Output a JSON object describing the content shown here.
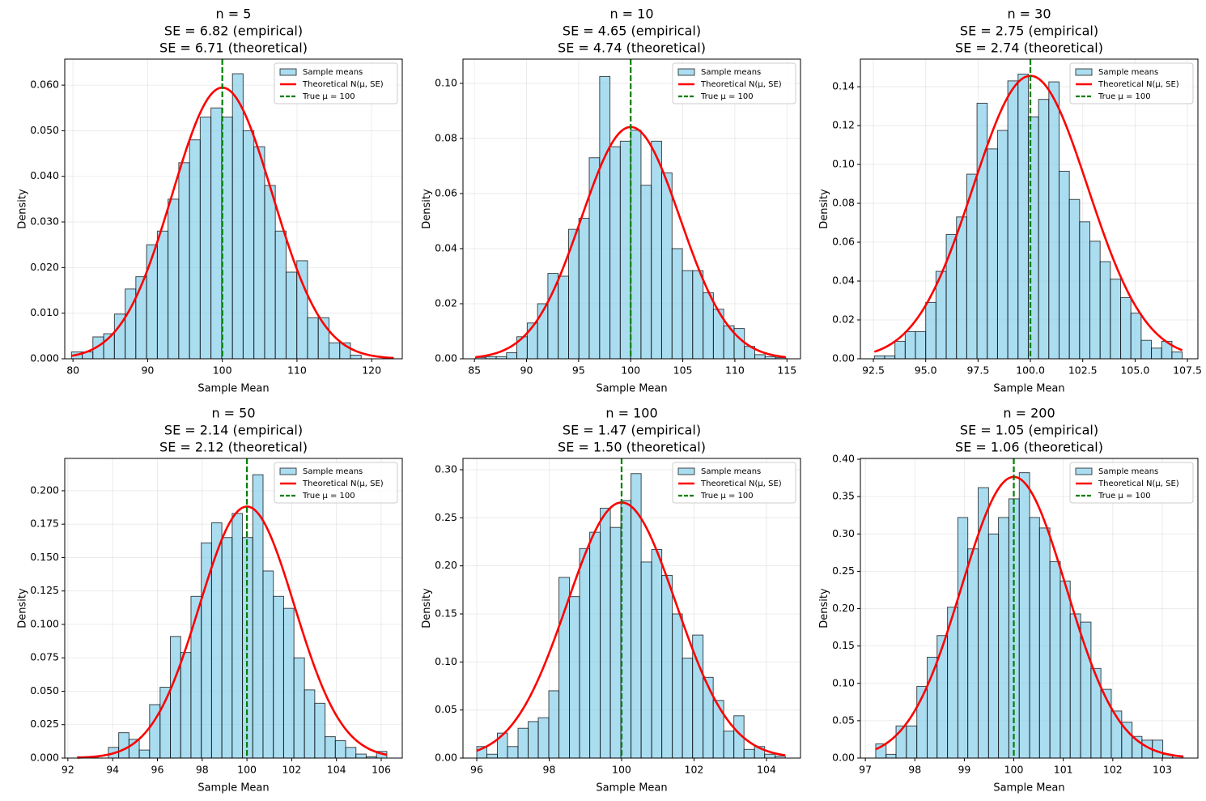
{
  "chart_data": [
    {
      "type": "histogram",
      "title": [
        "n = 5",
        "SE = 6.82 (empirical)",
        "SE = 6.71 (theoretical)"
      ],
      "xlabel": "Sample Mean",
      "ylabel": "Density",
      "name": "Sample means",
      "color": "#87ceeb",
      "edgecolor": "#000000",
      "bins": [
        79.8,
        81.24,
        82.67,
        84.11,
        85.55,
        86.99,
        88.42,
        89.86,
        91.3,
        92.73,
        94.17,
        95.61,
        97.04,
        98.48,
        99.92,
        101.36,
        102.79,
        104.23,
        105.67,
        107.1,
        108.54,
        109.98,
        111.41,
        112.85,
        114.29,
        115.73,
        117.16,
        118.6,
        120.04,
        121.47,
        122.91
      ],
      "values": [
        0.0015,
        0.0015,
        0.0048,
        0.0055,
        0.0098,
        0.0153,
        0.018,
        0.025,
        0.028,
        0.035,
        0.043,
        0.048,
        0.053,
        0.055,
        0.053,
        0.0625,
        0.05,
        0.0465,
        0.038,
        0.028,
        0.019,
        0.0215,
        0.009,
        0.009,
        0.0035,
        0.0035,
        0.0008,
        0,
        0,
        0.0003
      ],
      "curve": {
        "name": "Theoretical N(μ, SE)",
        "color": "#ff0000",
        "mean": 100,
        "sd": 6.71
      },
      "vline": {
        "name": "True μ = 100",
        "color": "#008000",
        "value": 100
      },
      "xlim": [
        78.9,
        124.1
      ],
      "xticks": [
        80,
        90,
        100,
        110,
        120
      ],
      "ylim": [
        0,
        0.0657
      ],
      "yticks": [
        {
          "value": 0,
          "label": "0.000"
        },
        {
          "value": 0.01,
          "label": "0.010"
        },
        {
          "value": 0.02,
          "label": "0.020"
        },
        {
          "value": 0.03,
          "label": "0.030"
        },
        {
          "value": 0.04,
          "label": "0.040"
        },
        {
          "value": 0.05,
          "label": "0.050"
        },
        {
          "value": 0.06,
          "label": "0.060"
        }
      ],
      "grid": true,
      "legend": "upper right"
    },
    {
      "type": "histogram",
      "title": [
        "n = 10",
        "SE = 4.65 (empirical)",
        "SE = 4.74 (theoretical)"
      ],
      "xlabel": "Sample Mean",
      "ylabel": "Density",
      "name": "Sample means",
      "color": "#87ceeb",
      "edgecolor": "#000000",
      "bins": [
        85.1,
        86.09,
        87.09,
        88.08,
        89.07,
        90.07,
        91.06,
        92.05,
        93.04,
        94.04,
        95.03,
        96.02,
        97.02,
        98.01,
        99.0,
        100.0,
        100.99,
        101.98,
        102.97,
        103.97,
        104.96,
        105.95,
        106.95,
        107.94,
        108.93,
        109.93,
        110.92,
        111.91,
        112.9,
        113.9,
        114.89
      ],
      "values": [
        0.0005,
        0.0008,
        0.0008,
        0.0022,
        0.008,
        0.013,
        0.02,
        0.031,
        0.03,
        0.047,
        0.051,
        0.073,
        0.1025,
        0.077,
        0.079,
        0.083,
        0.063,
        0.079,
        0.0675,
        0.04,
        0.032,
        0.032,
        0.024,
        0.018,
        0.012,
        0.011,
        0.0045,
        0.0015,
        0.0008,
        0.0004
      ],
      "curve": {
        "name": "Theoretical N(μ, SE)",
        "color": "#ff0000",
        "mean": 100,
        "sd": 4.74
      },
      "vline": {
        "name": "True μ = 100",
        "color": "#008000",
        "value": 100
      },
      "xlim": [
        83.9,
        116.3
      ],
      "xticks": [
        85,
        90,
        95,
        100,
        105,
        110,
        115
      ],
      "ylim": [
        0,
        0.1088
      ],
      "yticks": [
        {
          "value": 0,
          "label": "0.00"
        },
        {
          "value": 0.02,
          "label": "0.02"
        },
        {
          "value": 0.04,
          "label": "0.04"
        },
        {
          "value": 0.06,
          "label": "0.06"
        },
        {
          "value": 0.08,
          "label": "0.08"
        },
        {
          "value": 0.1,
          "label": "0.10"
        }
      ],
      "grid": true,
      "legend": "upper right"
    },
    {
      "type": "histogram",
      "title": [
        "n = 30",
        "SE = 2.75 (empirical)",
        "SE = 2.74 (theoretical)"
      ],
      "xlabel": "Sample Mean",
      "ylabel": "Density",
      "name": "Sample means",
      "color": "#87ceeb",
      "edgecolor": "#000000",
      "bins": [
        92.55,
        93.04,
        93.53,
        94.02,
        94.51,
        95.0,
        95.49,
        95.98,
        96.47,
        96.96,
        97.45,
        97.94,
        98.43,
        98.92,
        99.41,
        99.9,
        100.39,
        100.88,
        101.37,
        101.86,
        102.35,
        102.84,
        103.33,
        103.82,
        104.31,
        104.8,
        105.29,
        105.78,
        106.27,
        106.76,
        107.25
      ],
      "values": [
        0.0015,
        0.0015,
        0.009,
        0.014,
        0.014,
        0.029,
        0.045,
        0.064,
        0.073,
        0.095,
        0.1315,
        0.108,
        0.1175,
        0.143,
        0.1465,
        0.1245,
        0.1335,
        0.1425,
        0.0965,
        0.082,
        0.0705,
        0.0605,
        0.05,
        0.041,
        0.0315,
        0.0235,
        0.0095,
        0.0055,
        0.009,
        0.0035
      ],
      "curve": {
        "name": "Theoretical N(μ, SE)",
        "color": "#ff0000",
        "mean": 100,
        "sd": 2.74
      },
      "vline": {
        "name": "True μ = 100",
        "color": "#008000",
        "value": 100
      },
      "xlim": [
        91.88,
        108.0
      ],
      "xticks": [
        92.5,
        {
          "value": 95,
          "label": "95.0"
        },
        97.5,
        {
          "value": 100,
          "label": "100.0"
        },
        102.5,
        {
          "value": 105,
          "label": "105.0"
        },
        107.5
      ],
      "ylim": [
        0,
        0.1542
      ],
      "yticks": [
        {
          "value": 0,
          "label": "0.00"
        },
        {
          "value": 0.02,
          "label": "0.02"
        },
        {
          "value": 0.04,
          "label": "0.04"
        },
        {
          "value": 0.06,
          "label": "0.06"
        },
        {
          "value": 0.08,
          "label": "0.08"
        },
        {
          "value": 0.1,
          "label": "0.10"
        },
        {
          "value": 0.12,
          "label": "0.12"
        },
        {
          "value": 0.14,
          "label": "0.14"
        }
      ],
      "grid": true,
      "legend": "upper right"
    },
    {
      "type": "histogram",
      "title": [
        "n = 50",
        "SE = 2.14 (empirical)",
        "SE = 2.12 (theoretical)"
      ],
      "xlabel": "Sample Mean",
      "ylabel": "Density",
      "name": "Sample means",
      "color": "#87ceeb",
      "edgecolor": "#000000",
      "bins": [
        92.43,
        92.89,
        93.35,
        93.81,
        94.27,
        94.73,
        95.19,
        95.65,
        96.12,
        96.58,
        97.04,
        97.5,
        97.96,
        98.42,
        98.88,
        99.34,
        99.8,
        100.26,
        100.72,
        101.18,
        101.64,
        102.1,
        102.57,
        103.03,
        103.49,
        103.95,
        104.41,
        104.87,
        105.33,
        105.79,
        106.25
      ],
      "values": [
        0.001,
        0.001,
        0,
        0.008,
        0.019,
        0.014,
        0.006,
        0.04,
        0.053,
        0.091,
        0.079,
        0.121,
        0.161,
        0.176,
        0.165,
        0.183,
        0.165,
        0.212,
        0.14,
        0.121,
        0.112,
        0.075,
        0.051,
        0.041,
        0.016,
        0.013,
        0.008,
        0.003,
        0.001,
        0.005
      ],
      "curve": {
        "name": "Theoretical N(μ, SE)",
        "color": "#ff0000",
        "mean": 100,
        "sd": 2.12
      },
      "vline": {
        "name": "True μ = 100",
        "color": "#008000",
        "value": 100
      },
      "xlim": [
        91.86,
        106.94
      ],
      "xticks": [
        92,
        94,
        96,
        98,
        100,
        102,
        104,
        106
      ],
      "ylim": [
        0,
        0.2242
      ],
      "yticks": [
        {
          "value": 0,
          "label": "0.000"
        },
        {
          "value": 0.025,
          "label": "0.025"
        },
        {
          "value": 0.05,
          "label": "0.050"
        },
        {
          "value": 0.075,
          "label": "0.075"
        },
        {
          "value": 0.1,
          "label": "0.100"
        },
        {
          "value": 0.125,
          "label": "0.125"
        },
        {
          "value": 0.15,
          "label": "0.150"
        },
        {
          "value": 0.175,
          "label": "0.175"
        },
        {
          "value": 0.2,
          "label": "0.200"
        }
      ],
      "grid": true,
      "legend": "upper right"
    },
    {
      "type": "histogram",
      "title": [
        "n = 100",
        "SE = 1.47 (empirical)",
        "SE = 1.50 (theoretical)"
      ],
      "xlabel": "Sample Mean",
      "ylabel": "Density",
      "name": "Sample means",
      "color": "#87ceeb",
      "edgecolor": "#000000",
      "bins": [
        96.0,
        96.28,
        96.57,
        96.85,
        97.14,
        97.42,
        97.7,
        97.99,
        98.27,
        98.56,
        98.84,
        99.12,
        99.41,
        99.69,
        99.98,
        100.26,
        100.54,
        100.83,
        101.11,
        101.4,
        101.68,
        101.96,
        102.25,
        102.53,
        102.82,
        103.1,
        103.38,
        103.67,
        103.95,
        104.24,
        104.52
      ],
      "values": [
        0.012,
        0.004,
        0.026,
        0.012,
        0.031,
        0.038,
        0.042,
        0.07,
        0.188,
        0.168,
        0.218,
        0.235,
        0.26,
        0.24,
        0.268,
        0.296,
        0.204,
        0.217,
        0.19,
        0.15,
        0.104,
        0.128,
        0.084,
        0.06,
        0.028,
        0.044,
        0.009,
        0.012,
        0.004,
        0.002
      ],
      "curve": {
        "name": "Theoretical N(μ, SE)",
        "color": "#ff0000",
        "mean": 100,
        "sd": 1.5
      },
      "vline": {
        "name": "True μ = 100",
        "color": "#008000",
        "value": 100
      },
      "xlim": [
        95.62,
        104.94
      ],
      "xticks": [
        96,
        98,
        100,
        102,
        104
      ],
      "ylim": [
        0,
        0.3118
      ],
      "yticks": [
        {
          "value": 0,
          "label": "0.00"
        },
        {
          "value": 0.05,
          "label": "0.05"
        },
        {
          "value": 0.1,
          "label": "0.10"
        },
        {
          "value": 0.15,
          "label": "0.15"
        },
        {
          "value": 0.2,
          "label": "0.20"
        },
        {
          "value": 0.25,
          "label": "0.25"
        },
        {
          "value": 0.3,
          "label": "0.30"
        }
      ],
      "grid": true,
      "legend": "upper right"
    },
    {
      "type": "histogram",
      "title": [
        "n = 200",
        "SE = 1.05 (empirical)",
        "SE = 1.06 (theoretical)"
      ],
      "xlabel": "Sample Mean",
      "ylabel": "Density",
      "name": "Sample means",
      "color": "#87ceeb",
      "edgecolor": "#000000",
      "bins": [
        97.21,
        97.42,
        97.62,
        97.83,
        98.04,
        98.25,
        98.45,
        98.66,
        98.87,
        99.07,
        99.28,
        99.49,
        99.69,
        99.9,
        100.11,
        100.32,
        100.52,
        100.73,
        100.94,
        101.14,
        101.35,
        101.56,
        101.76,
        101.97,
        102.18,
        102.39,
        102.59,
        102.8,
        103.01,
        103.21,
        103.42
      ],
      "values": [
        0.019,
        0.005,
        0.043,
        0.043,
        0.096,
        0.135,
        0.164,
        0.202,
        0.322,
        0.28,
        0.362,
        0.3,
        0.322,
        0.347,
        0.382,
        0.322,
        0.308,
        0.263,
        0.237,
        0.193,
        0.182,
        0.12,
        0.092,
        0.063,
        0.048,
        0.029,
        0.024,
        0.024,
        0.005,
        0.003
      ],
      "curve": {
        "name": "Theoretical N(μ, SE)",
        "color": "#ff0000",
        "mean": 100,
        "sd": 1.06
      },
      "vline": {
        "name": "True μ = 100",
        "color": "#008000",
        "value": 100
      },
      "xlim": [
        96.9,
        103.72
      ],
      "xticks": [
        97,
        98,
        99,
        100,
        101,
        102,
        103
      ],
      "ylim": [
        0,
        0.4011
      ],
      "yticks": [
        {
          "value": 0,
          "label": "0.00"
        },
        {
          "value": 0.05,
          "label": "0.05"
        },
        {
          "value": 0.1,
          "label": "0.10"
        },
        {
          "value": 0.15,
          "label": "0.15"
        },
        {
          "value": 0.2,
          "label": "0.20"
        },
        {
          "value": 0.25,
          "label": "0.25"
        },
        {
          "value": 0.3,
          "label": "0.30"
        },
        {
          "value": 0.35,
          "label": "0.35"
        },
        {
          "value": 0.4,
          "label": "0.40"
        }
      ],
      "grid": true,
      "legend": "upper right"
    }
  ]
}
